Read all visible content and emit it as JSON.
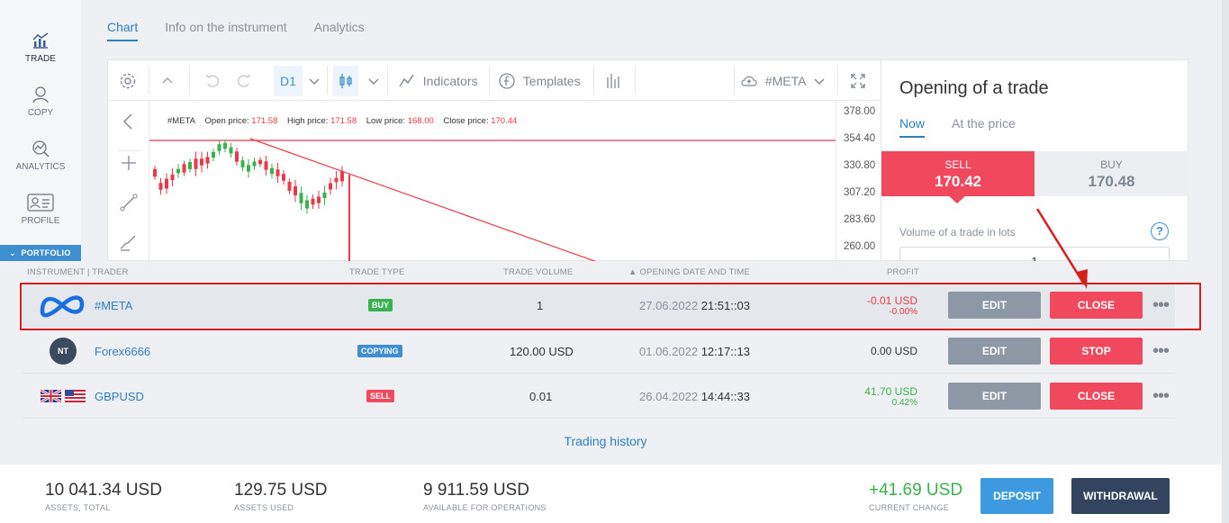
{
  "sidebar": {
    "items": [
      {
        "label": "TRADE",
        "icon": "chart-trade-icon"
      },
      {
        "label": "COPY",
        "icon": "user-copy-icon"
      },
      {
        "label": "ANALYTICS",
        "icon": "analytics-icon"
      },
      {
        "label": "PROFILE",
        "icon": "profile-card-icon"
      }
    ],
    "portfolio_label": "PORTFOLIO"
  },
  "top_tabs": [
    "Chart",
    "Info on the instrument",
    "Analytics"
  ],
  "chart": {
    "timeframe": "D1",
    "indicators_label": "Indicators",
    "templates_label": "Templates",
    "instrument": "#META",
    "ohlc": {
      "symbol": "#META",
      "open_label": "Open price:",
      "open": "171.58",
      "high_label": "High price:",
      "high": "171.58",
      "low_label": "Low price:",
      "low": "168.00",
      "close_label": "Close price:",
      "close": "170.44"
    },
    "price_ticks": [
      "378.00",
      "354.40",
      "330.80",
      "307.20",
      "283.60",
      "260.00"
    ]
  },
  "trade_panel": {
    "title": "Opening of a trade",
    "tabs": [
      "Now",
      "At the price"
    ],
    "sell_label": "SELL",
    "sell_price": "170.42",
    "buy_label": "BUY",
    "buy_price": "170.48",
    "volume_label": "Volume of a trade in lots",
    "volume_value": "1",
    "help": "?"
  },
  "portfolio": {
    "headers": {
      "instrument": "INSTRUMENT | TRADER",
      "type": "TRADE TYPE",
      "volume": "TRADE VOLUME",
      "date": "▲ OPENING DATE AND TIME",
      "profit": "PROFIT"
    },
    "rows": [
      {
        "name": "#META",
        "type": "BUY",
        "volume": "1",
        "date": "27.06.2022",
        "time": "21:51::03",
        "profit": "-0.01 USD",
        "profit_pct": "-0.00%",
        "edit": "EDIT",
        "action": "CLOSE",
        "more": "•••"
      },
      {
        "name": "Forex6666",
        "avatar": "NT",
        "type": "COPYING",
        "volume": "120.00 USD",
        "date": "01.06.2022",
        "time": "12:17::13",
        "profit": "0.00 USD",
        "edit": "EDIT",
        "action": "STOP",
        "more": "•••"
      },
      {
        "name": "GBPUSD",
        "type": "SELL",
        "volume": "0.01",
        "date": "26.04.2022",
        "time": "14:44::33",
        "profit": "41.70 USD",
        "profit_pct": "0.42%",
        "edit": "EDIT",
        "action": "CLOSE",
        "more": "•••"
      }
    ],
    "history_link": "Trading history"
  },
  "footer": {
    "assets_total": "10 041.34 USD",
    "assets_total_label": "ASSETS, TOTAL",
    "assets_used": "129.75 USD",
    "assets_used_label": "ASSETS USED",
    "available": "9 911.59 USD",
    "available_label": "AVAILABLE FOR OPERATIONS",
    "current_change": "+41.69 USD",
    "current_change_label": "CURRENT CHANGE",
    "deposit": "DEPOSIT",
    "withdrawal": "WITHDRAWAL"
  },
  "colors": {
    "accent": "#2d7fc3",
    "sell": "#f0495e",
    "buy_badge": "#37b24d",
    "annotation": "#d81d1d"
  }
}
